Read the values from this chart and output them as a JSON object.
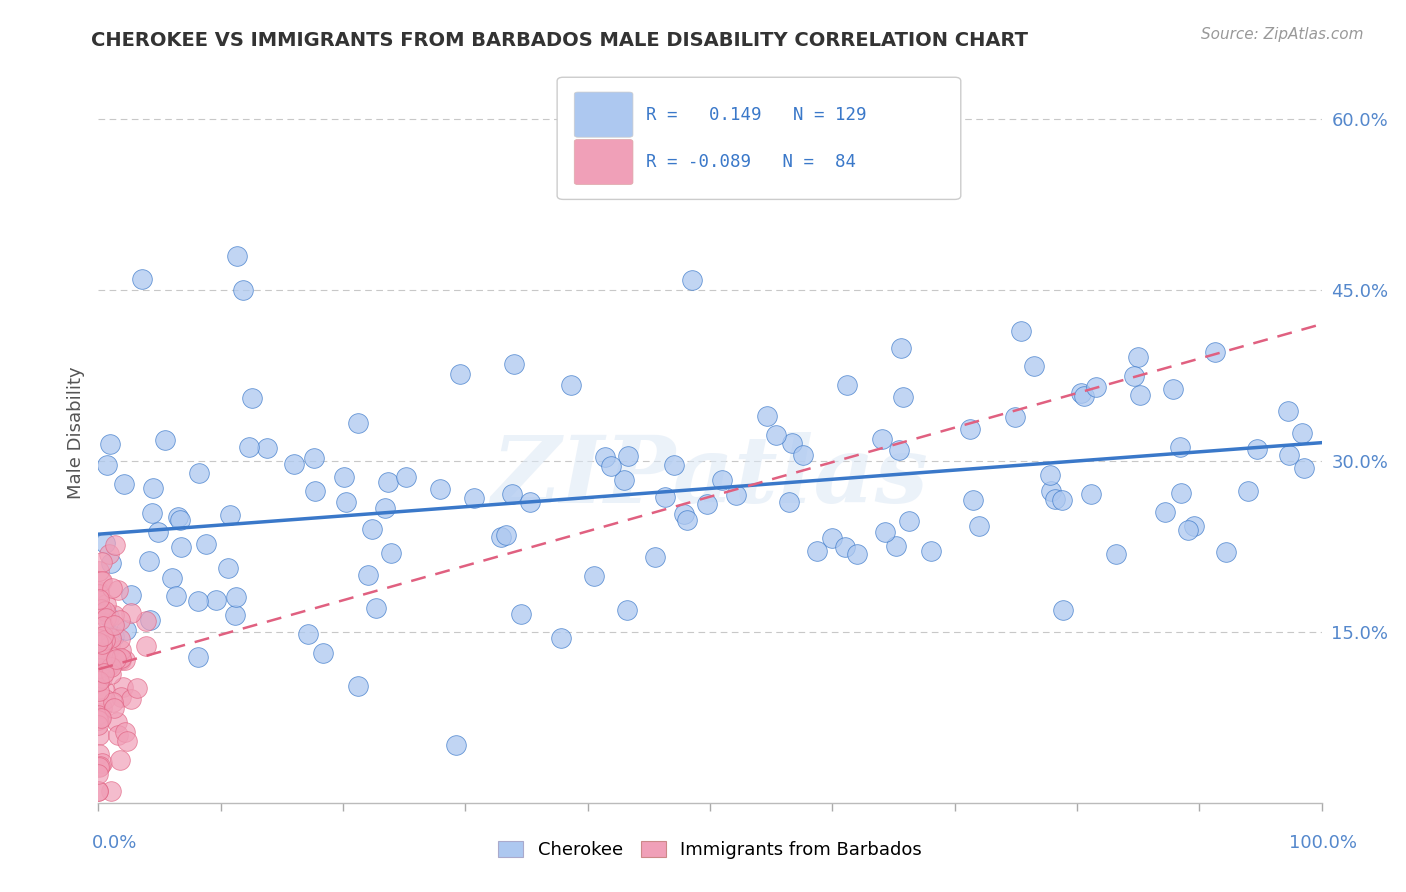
{
  "title": "CHEROKEE VS IMMIGRANTS FROM BARBADOS MALE DISABILITY CORRELATION CHART",
  "source": "Source: ZipAtlas.com",
  "ylabel": "Male Disability",
  "legend_labels": [
    "Cherokee",
    "Immigrants from Barbados"
  ],
  "cherokee_R": "0.149",
  "cherokee_N": "129",
  "barbados_R": "-0.089",
  "barbados_N": "84",
  "cherokee_color": "#adc8f0",
  "barbados_color": "#f0a0b8",
  "cherokee_line_color": "#3a78c9",
  "barbados_line_color": "#e06080",
  "grid_color": "#c8c8c8",
  "background_color": "#ffffff",
  "label_color": "#5588cc",
  "title_color": "#333333",
  "source_color": "#999999",
  "ylabel_color": "#555555",
  "xlim": [
    0.0,
    1.0
  ],
  "ylim": [
    0.0,
    0.65
  ],
  "ytick_vals": [
    0.0,
    0.15,
    0.3,
    0.45,
    0.6
  ],
  "ytick_labels": [
    "",
    "15.0%",
    "30.0%",
    "45.0%",
    "60.0%"
  ],
  "cherokee_seed": 77,
  "barbados_seed": 33
}
